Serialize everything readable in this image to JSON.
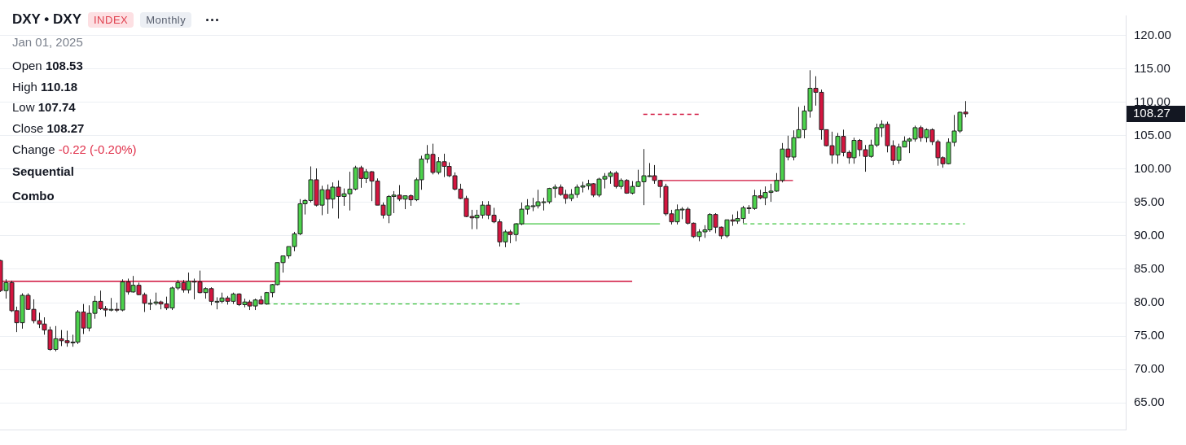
{
  "chart_data": {
    "type": "candlestick",
    "title": "DXY • DXY",
    "subtitle": "Jan 01, 2025",
    "categories": [
      null,
      null,
      null,
      null,
      null,
      null,
      null,
      null,
      null,
      null,
      null,
      null,
      null,
      null,
      null,
      null,
      null,
      null,
      null,
      null,
      null,
      null,
      null,
      null,
      null,
      null,
      null,
      null,
      null,
      null,
      null,
      null,
      null,
      null,
      null,
      null,
      null,
      null,
      null,
      null,
      null,
      null,
      null,
      null,
      null,
      null,
      null,
      null,
      null,
      null,
      null,
      null,
      null,
      null,
      null,
      null,
      null,
      null,
      null,
      null,
      null,
      null,
      null,
      null,
      null,
      null,
      null,
      null,
      null,
      null,
      null,
      null,
      null,
      null,
      null,
      null,
      null,
      null,
      null,
      null,
      null,
      null,
      null,
      null,
      null,
      null,
      null,
      null,
      null,
      null,
      null,
      null,
      null,
      null,
      null,
      null,
      null,
      null,
      null,
      null,
      null,
      null,
      null,
      null,
      null,
      null,
      null,
      null,
      null,
      null,
      null,
      null,
      null,
      null,
      null,
      null,
      null,
      null,
      null,
      null,
      null,
      null,
      null,
      null,
      null,
      null,
      null,
      null,
      null,
      null,
      null,
      null,
      null,
      null,
      null,
      null,
      null,
      null,
      null,
      null,
      null,
      null,
      null,
      null,
      null,
      null,
      null,
      null,
      null,
      null,
      null,
      null,
      null,
      null,
      null,
      null,
      null,
      null,
      null,
      null,
      null,
      null,
      null,
      null,
      null,
      null,
      null,
      null,
      null,
      null,
      null,
      null,
      null,
      null,
      null
    ],
    "ohlc": [
      [
        86.3,
        86.4,
        81.6,
        81.8
      ],
      [
        81.8,
        83.5,
        80.6,
        83.0
      ],
      [
        83.0,
        83.3,
        78.6,
        78.8
      ],
      [
        78.8,
        79.4,
        75.6,
        77.0
      ],
      [
        77.0,
        81.4,
        76.1,
        81.1
      ],
      [
        81.1,
        81.4,
        78.9,
        79.0
      ],
      [
        79.0,
        80.5,
        76.9,
        77.3
      ],
      [
        77.3,
        78.5,
        76.2,
        76.8
      ],
      [
        76.8,
        77.8,
        75.2,
        75.9
      ],
      [
        75.9,
        76.4,
        72.8,
        73.0
      ],
      [
        73.0,
        76.5,
        72.7,
        74.6
      ],
      [
        74.6,
        75.9,
        73.5,
        74.3
      ],
      [
        74.3,
        75.8,
        73.4,
        74.0
      ],
      [
        74.0,
        75.2,
        73.4,
        74.1
      ],
      [
        74.1,
        78.9,
        73.8,
        78.6
      ],
      [
        78.6,
        79.8,
        75.3,
        76.2
      ],
      [
        76.2,
        79.6,
        75.7,
        78.4
      ],
      [
        78.4,
        81.0,
        77.6,
        80.2
      ],
      [
        80.2,
        81.8,
        78.9,
        79.1
      ],
      [
        79.1,
        79.5,
        77.9,
        78.9
      ],
      [
        78.9,
        80.7,
        78.7,
        79.0
      ],
      [
        79.0,
        80.0,
        78.6,
        78.9
      ],
      [
        78.9,
        83.5,
        78.7,
        83.1
      ],
      [
        83.1,
        83.6,
        81.2,
        81.6
      ],
      [
        81.6,
        84.0,
        81.5,
        82.6
      ],
      [
        82.6,
        83.0,
        81.1,
        81.2
      ],
      [
        81.2,
        81.5,
        78.6,
        79.9
      ],
      [
        79.9,
        80.5,
        78.9,
        79.9
      ],
      [
        79.9,
        81.5,
        79.6,
        80.1
      ],
      [
        80.1,
        80.3,
        79.0,
        79.8
      ],
      [
        79.8,
        80.9,
        78.9,
        79.2
      ],
      [
        79.2,
        82.4,
        78.9,
        82.2
      ],
      [
        82.2,
        83.4,
        81.9,
        83.0
      ],
      [
        83.0,
        83.4,
        81.5,
        81.9
      ],
      [
        81.9,
        84.5,
        81.4,
        83.2
      ],
      [
        83.2,
        83.6,
        80.5,
        83.1
      ],
      [
        83.1,
        84.8,
        81.4,
        81.5
      ],
      [
        81.5,
        82.3,
        80.6,
        82.1
      ],
      [
        82.1,
        82.3,
        79.6,
        80.2
      ],
      [
        80.2,
        80.8,
        79.0,
        80.2
      ],
      [
        80.2,
        81.5,
        79.9,
        80.7
      ],
      [
        80.7,
        81.0,
        79.7,
        80.2
      ],
      [
        80.2,
        81.5,
        79.8,
        81.3
      ],
      [
        81.3,
        81.4,
        79.5,
        79.7
      ],
      [
        79.7,
        80.6,
        79.3,
        80.1
      ],
      [
        80.1,
        80.4,
        78.9,
        79.5
      ],
      [
        79.5,
        80.6,
        78.9,
        80.4
      ],
      [
        80.4,
        81.0,
        79.7,
        79.8
      ],
      [
        79.8,
        81.6,
        79.7,
        81.5
      ],
      [
        81.5,
        82.8,
        80.8,
        82.7
      ],
      [
        82.7,
        86.0,
        82.6,
        86.0
      ],
      [
        86.0,
        87.0,
        84.5,
        87.0
      ],
      [
        87.0,
        88.4,
        86.6,
        88.4
      ],
      [
        88.4,
        90.6,
        87.7,
        90.3
      ],
      [
        90.3,
        95.5,
        90.1,
        94.8
      ],
      [
        94.8,
        95.5,
        93.2,
        95.3
      ],
      [
        95.3,
        100.4,
        95.0,
        98.4
      ],
      [
        98.4,
        100.1,
        94.4,
        94.6
      ],
      [
        94.6,
        97.5,
        93.1,
        96.9
      ],
      [
        96.9,
        97.7,
        93.3,
        95.5
      ],
      [
        95.5,
        98.0,
        94.1,
        97.3
      ],
      [
        97.3,
        98.3,
        92.6,
        95.9
      ],
      [
        95.9,
        97.1,
        94.5,
        96.3
      ],
      [
        96.3,
        99.6,
        93.8,
        97.0
      ],
      [
        97.0,
        100.5,
        96.8,
        100.2
      ],
      [
        100.2,
        100.5,
        97.2,
        98.6
      ],
      [
        98.6,
        100.0,
        97.9,
        99.6
      ],
      [
        99.6,
        99.7,
        95.2,
        98.2
      ],
      [
        98.2,
        98.6,
        94.6,
        94.6
      ],
      [
        94.6,
        95.0,
        92.6,
        93.1
      ],
      [
        93.1,
        96.1,
        91.9,
        95.9
      ],
      [
        95.9,
        96.7,
        93.4,
        96.1
      ],
      [
        96.1,
        97.6,
        95.2,
        95.5
      ],
      [
        95.5,
        96.0,
        94.0,
        96.0
      ],
      [
        96.0,
        96.2,
        94.5,
        95.4
      ],
      [
        95.4,
        98.7,
        95.2,
        98.4
      ],
      [
        98.4,
        102.0,
        96.9,
        101.5
      ],
      [
        101.5,
        103.6,
        100.9,
        102.2
      ],
      [
        102.2,
        103.8,
        99.2,
        99.5
      ],
      [
        99.5,
        101.8,
        99.2,
        101.1
      ],
      [
        101.1,
        102.3,
        98.8,
        100.4
      ],
      [
        100.4,
        101.0,
        98.8,
        99.0
      ],
      [
        99.0,
        99.5,
        96.8,
        97.0
      ],
      [
        97.0,
        97.8,
        95.5,
        95.6
      ],
      [
        95.6,
        96.0,
        92.8,
        92.9
      ],
      [
        92.9,
        93.9,
        91.0,
        92.7
      ],
      [
        92.7,
        93.9,
        91.0,
        93.1
      ],
      [
        93.1,
        95.2,
        92.6,
        94.6
      ],
      [
        94.6,
        95.2,
        92.5,
        93.1
      ],
      [
        93.1,
        94.2,
        91.9,
        92.1
      ],
      [
        92.1,
        92.5,
        88.4,
        89.1
      ],
      [
        89.1,
        90.9,
        88.3,
        90.6
      ],
      [
        90.6,
        90.9,
        88.9,
        90.2
      ],
      [
        90.2,
        91.9,
        89.2,
        91.8
      ],
      [
        91.8,
        95.0,
        91.6,
        94.0
      ],
      [
        94.0,
        95.5,
        93.2,
        94.5
      ],
      [
        94.5,
        95.7,
        93.7,
        94.5
      ],
      [
        94.5,
        96.9,
        94.1,
        95.1
      ],
      [
        95.1,
        95.7,
        93.8,
        95.1
      ],
      [
        95.1,
        97.2,
        94.8,
        97.1
      ],
      [
        97.1,
        97.7,
        95.7,
        97.3
      ],
      [
        97.3,
        97.7,
        96.0,
        96.2
      ],
      [
        96.2,
        96.9,
        94.8,
        95.6
      ],
      [
        95.6,
        97.0,
        95.2,
        96.2
      ],
      [
        96.2,
        97.7,
        95.7,
        97.3
      ],
      [
        97.3,
        98.1,
        96.5,
        97.5
      ],
      [
        97.5,
        98.4,
        96.9,
        97.8
      ],
      [
        97.8,
        97.9,
        95.8,
        96.1
      ],
      [
        96.1,
        98.7,
        95.8,
        98.5
      ],
      [
        98.5,
        99.4,
        97.1,
        98.9
      ],
      [
        98.9,
        99.7,
        97.8,
        99.4
      ],
      [
        99.4,
        99.7,
        97.1,
        97.4
      ],
      [
        97.4,
        98.6,
        97.0,
        98.3
      ],
      [
        98.3,
        98.5,
        96.3,
        96.4
      ],
      [
        96.4,
        98.2,
        96.2,
        97.4
      ],
      [
        97.4,
        99.9,
        97.3,
        98.1
      ],
      [
        98.1,
        103.0,
        94.6,
        99.0
      ],
      [
        99.0,
        100.9,
        98.8,
        99.0
      ],
      [
        99.0,
        100.6,
        97.8,
        98.3
      ],
      [
        98.3,
        98.4,
        95.7,
        97.4
      ],
      [
        97.4,
        97.8,
        93.0,
        93.3
      ],
      [
        93.3,
        93.9,
        91.7,
        92.1
      ],
      [
        92.1,
        94.7,
        91.7,
        93.9
      ],
      [
        93.9,
        94.3,
        92.5,
        94.0
      ],
      [
        94.0,
        94.3,
        91.7,
        91.9
      ],
      [
        91.9,
        92.0,
        89.7,
        89.9
      ],
      [
        89.9,
        91.0,
        89.2,
        90.6
      ],
      [
        90.6,
        91.6,
        89.7,
        90.9
      ],
      [
        90.9,
        93.4,
        90.6,
        93.2
      ],
      [
        93.2,
        93.4,
        90.4,
        91.3
      ],
      [
        91.3,
        91.4,
        89.5,
        90.0
      ],
      [
        90.0,
        92.4,
        89.7,
        92.4
      ],
      [
        92.4,
        93.2,
        91.5,
        92.2
      ],
      [
        92.2,
        93.7,
        91.8,
        92.6
      ],
      [
        92.6,
        94.5,
        91.9,
        94.2
      ],
      [
        94.2,
        94.6,
        93.3,
        94.1
      ],
      [
        94.1,
        96.9,
        93.9,
        96.0
      ],
      [
        96.0,
        96.9,
        95.5,
        95.7
      ],
      [
        95.7,
        97.4,
        94.6,
        96.5
      ],
      [
        96.5,
        97.8,
        95.1,
        96.7
      ],
      [
        96.7,
        99.4,
        96.6,
        98.3
      ],
      [
        98.3,
        103.9,
        98.0,
        103.0
      ],
      [
        103.0,
        105.0,
        101.3,
        101.8
      ],
      [
        101.8,
        105.8,
        101.3,
        104.7
      ],
      [
        104.7,
        109.3,
        104.6,
        105.9
      ],
      [
        105.9,
        109.5,
        104.6,
        108.7
      ],
      [
        108.7,
        114.8,
        107.7,
        112.1
      ],
      [
        112.1,
        113.9,
        109.5,
        111.5
      ],
      [
        111.5,
        111.9,
        104.4,
        105.9
      ],
      [
        105.9,
        105.9,
        103.4,
        103.5
      ],
      [
        103.5,
        105.6,
        100.8,
        102.1
      ],
      [
        102.1,
        105.4,
        100.8,
        104.9
      ],
      [
        104.9,
        105.9,
        101.9,
        102.5
      ],
      [
        102.5,
        102.8,
        100.8,
        101.7
      ],
      [
        101.7,
        104.7,
        100.8,
        104.3
      ],
      [
        104.3,
        104.5,
        101.9,
        102.9
      ],
      [
        102.9,
        103.6,
        99.6,
        101.9
      ],
      [
        101.9,
        104.4,
        101.7,
        103.6
      ],
      [
        103.6,
        106.8,
        103.3,
        106.2
      ],
      [
        106.2,
        107.3,
        104.8,
        106.7
      ],
      [
        106.7,
        107.1,
        102.5,
        103.5
      ],
      [
        103.5,
        104.3,
        100.6,
        101.3
      ],
      [
        101.3,
        103.8,
        100.8,
        103.3
      ],
      [
        103.3,
        104.9,
        103.3,
        104.2
      ],
      [
        104.2,
        104.7,
        102.4,
        104.5
      ],
      [
        104.5,
        106.5,
        104.1,
        106.2
      ],
      [
        106.2,
        106.5,
        104.1,
        104.7
      ],
      [
        104.7,
        106.1,
        104.0,
        105.9
      ],
      [
        105.9,
        106.1,
        103.6,
        104.1
      ],
      [
        104.1,
        104.4,
        100.5,
        101.7
      ],
      [
        101.7,
        101.9,
        100.2,
        100.8
      ],
      [
        100.8,
        104.6,
        100.7,
        104.0
      ],
      [
        104.0,
        108.1,
        103.4,
        105.7
      ],
      [
        105.7,
        108.6,
        105.4,
        108.5
      ],
      [
        108.53,
        110.18,
        107.74,
        108.27
      ]
    ],
    "series": [
      {
        "type": "line",
        "color": "#d0103a",
        "line_style": "solid",
        "values": [
          83.2,
          83.2,
          83.2,
          83.2,
          83.2,
          83.2,
          83.2,
          83.2,
          83.2,
          83.2,
          83.2,
          83.2,
          83.2,
          83.2,
          83.2,
          83.2,
          83.2,
          83.2,
          83.2,
          83.2,
          83.2,
          83.2,
          83.2,
          83.2,
          83.2,
          83.2,
          83.2,
          83.2,
          83.2,
          83.2,
          83.2,
          83.2,
          83.2,
          83.2,
          83.2,
          83.2,
          83.2,
          83.2,
          83.2,
          83.2,
          83.2,
          83.2,
          83.2,
          83.2,
          83.2,
          83.2,
          83.2,
          83.2,
          83.2,
          83.2,
          83.2,
          83.2,
          83.2,
          83.2,
          83.2,
          83.2,
          83.2,
          83.2,
          83.2,
          83.2,
          83.2,
          83.2,
          83.2,
          83.2,
          83.2,
          83.2,
          83.2,
          83.2,
          83.2,
          83.2,
          83.2,
          83.2,
          83.2,
          83.2,
          83.2,
          83.2,
          83.2,
          83.2,
          83.2,
          83.2,
          83.2,
          83.2,
          83.2,
          83.2,
          83.2,
          83.2,
          83.2,
          83.2,
          83.2,
          83.2,
          83.2,
          83.2,
          83.2,
          83.2,
          83.2,
          83.2,
          83.2,
          83.2,
          83.2,
          83.2,
          83.2,
          83.2,
          83.2,
          83.2,
          83.2,
          83.2,
          83.2,
          83.2,
          83.2,
          83.2,
          83.2,
          83.2,
          83.2,
          83.2,
          83.2,
          null,
          null,
          null,
          null,
          null,
          null,
          null,
          null,
          null,
          null,
          null,
          null,
          null,
          null,
          null,
          null,
          null,
          null,
          null,
          null,
          null,
          null,
          null,
          null,
          null,
          null,
          null,
          null,
          null,
          null,
          null,
          null,
          null,
          null,
          null,
          null,
          null,
          null,
          null,
          null,
          null,
          null,
          null,
          null,
          null,
          null,
          null,
          null,
          null,
          null,
          null,
          null,
          null,
          null,
          null,
          null,
          null,
          null,
          null,
          null
        ]
      },
      {
        "type": "line",
        "color": "#3ec43e",
        "line_style": "dashed",
        "values": [
          null,
          null,
          null,
          null,
          null,
          null,
          null,
          null,
          null,
          null,
          null,
          null,
          null,
          null,
          null,
          null,
          null,
          null,
          null,
          null,
          null,
          null,
          null,
          null,
          null,
          null,
          null,
          null,
          null,
          null,
          null,
          null,
          null,
          null,
          null,
          null,
          null,
          null,
          null,
          null,
          null,
          null,
          null,
          null,
          null,
          null,
          null,
          null,
          79.8,
          79.8,
          79.8,
          79.8,
          79.8,
          79.8,
          79.8,
          79.8,
          79.8,
          79.8,
          79.8,
          79.8,
          79.8,
          79.8,
          79.8,
          79.8,
          79.8,
          79.8,
          79.8,
          79.8,
          79.8,
          79.8,
          79.8,
          79.8,
          79.8,
          79.8,
          79.8,
          79.8,
          79.8,
          79.8,
          79.8,
          79.8,
          79.8,
          79.8,
          79.8,
          79.8,
          79.8,
          79.8,
          79.8,
          79.8,
          79.8,
          79.8,
          79.8,
          79.8,
          79.8,
          79.8,
          79.8,
          null,
          null,
          null,
          null,
          null,
          null,
          null,
          null,
          null,
          null,
          null,
          null,
          null,
          null,
          null,
          null,
          null,
          null,
          null,
          null,
          null,
          null,
          null,
          null,
          null,
          null,
          null,
          null,
          null,
          null,
          null,
          null,
          null,
          null,
          null,
          null,
          null,
          null,
          null,
          null,
          null,
          null,
          null,
          null,
          null,
          null,
          null,
          null,
          null,
          null,
          null,
          null,
          null,
          null,
          null,
          null,
          null,
          null,
          null,
          null,
          null,
          null,
          null,
          null,
          null,
          null,
          null,
          null,
          null,
          null,
          null,
          null,
          null,
          null,
          null,
          null,
          null,
          null,
          null,
          null
        ]
      },
      {
        "type": "line",
        "color": "#3ec43e",
        "line_style": "solid",
        "values": [
          null,
          null,
          null,
          null,
          null,
          null,
          null,
          null,
          null,
          null,
          null,
          null,
          null,
          null,
          null,
          null,
          null,
          null,
          null,
          null,
          null,
          null,
          null,
          null,
          null,
          null,
          null,
          null,
          null,
          null,
          null,
          null,
          null,
          null,
          null,
          null,
          null,
          null,
          null,
          null,
          null,
          null,
          null,
          null,
          null,
          null,
          null,
          null,
          null,
          null,
          null,
          null,
          null,
          null,
          null,
          null,
          null,
          null,
          null,
          null,
          null,
          null,
          null,
          null,
          null,
          null,
          null,
          null,
          null,
          null,
          null,
          null,
          null,
          null,
          null,
          null,
          null,
          null,
          null,
          null,
          null,
          null,
          null,
          null,
          null,
          null,
          null,
          null,
          null,
          null,
          null,
          null,
          null,
          91.8,
          91.8,
          91.8,
          91.8,
          91.8,
          91.8,
          91.8,
          91.8,
          91.8,
          91.8,
          91.8,
          91.8,
          91.8,
          91.8,
          91.8,
          91.8,
          91.8,
          91.8,
          91.8,
          91.8,
          91.8,
          91.8,
          91.8,
          91.8,
          91.8,
          91.8,
          91.8,
          null,
          null,
          null,
          null,
          null,
          null,
          null,
          null,
          null,
          null,
          null,
          null,
          null,
          null,
          null,
          null,
          null,
          null,
          null,
          null,
          null,
          null,
          null,
          null,
          null,
          null,
          null,
          null,
          null,
          null,
          null,
          null,
          null,
          null,
          null,
          null,
          null,
          null,
          null,
          null,
          null,
          null,
          null,
          null,
          null,
          null,
          null,
          null,
          null,
          null,
          null,
          null,
          null,
          null,
          null
        ]
      },
      {
        "type": "line",
        "color": "#d0103a",
        "line_style": "dashed",
        "values": [
          null,
          null,
          null,
          null,
          null,
          null,
          null,
          null,
          null,
          null,
          null,
          null,
          null,
          null,
          null,
          null,
          null,
          null,
          null,
          null,
          null,
          null,
          null,
          null,
          null,
          null,
          null,
          null,
          null,
          null,
          null,
          null,
          null,
          null,
          null,
          null,
          null,
          null,
          null,
          null,
          null,
          null,
          null,
          null,
          null,
          null,
          null,
          null,
          null,
          null,
          null,
          null,
          null,
          null,
          null,
          null,
          null,
          null,
          null,
          null,
          null,
          null,
          null,
          null,
          null,
          null,
          null,
          null,
          null,
          null,
          null,
          null,
          null,
          null,
          null,
          null,
          null,
          null,
          null,
          null,
          null,
          null,
          null,
          null,
          null,
          null,
          null,
          null,
          null,
          null,
          null,
          null,
          null,
          null,
          null,
          null,
          null,
          null,
          null,
          null,
          null,
          null,
          null,
          null,
          null,
          null,
          null,
          null,
          null,
          null,
          null,
          null,
          null,
          null,
          null,
          null,
          108.2,
          108.2,
          108.2,
          108.2,
          108.2,
          108.2,
          108.2,
          108.2,
          108.2,
          108.2,
          108.2,
          null,
          null,
          null,
          null,
          null,
          null,
          null,
          null,
          null,
          null,
          null,
          null,
          null,
          null,
          null,
          null,
          null,
          null,
          null,
          null,
          null,
          null,
          null,
          null,
          null,
          null,
          null,
          null,
          null,
          null,
          null,
          null,
          null,
          null,
          null,
          null,
          null,
          null,
          null,
          null,
          null,
          null,
          null,
          null,
          null,
          null,
          null,
          null
        ]
      },
      {
        "type": "line",
        "color": "#d0103a",
        "line_style": "solid",
        "values": [
          null,
          null,
          null,
          null,
          null,
          null,
          null,
          null,
          null,
          null,
          null,
          null,
          null,
          null,
          null,
          null,
          null,
          null,
          null,
          null,
          null,
          null,
          null,
          null,
          null,
          null,
          null,
          null,
          null,
          null,
          null,
          null,
          null,
          null,
          null,
          null,
          null,
          null,
          null,
          null,
          null,
          null,
          null,
          null,
          null,
          null,
          null,
          null,
          null,
          null,
          null,
          null,
          null,
          null,
          null,
          null,
          null,
          null,
          null,
          null,
          null,
          null,
          null,
          null,
          null,
          null,
          null,
          null,
          null,
          null,
          null,
          null,
          null,
          null,
          null,
          null,
          null,
          null,
          null,
          null,
          null,
          null,
          null,
          null,
          null,
          null,
          null,
          null,
          null,
          null,
          null,
          null,
          null,
          null,
          null,
          null,
          null,
          null,
          null,
          null,
          null,
          null,
          null,
          null,
          null,
          null,
          null,
          null,
          null,
          null,
          null,
          null,
          null,
          null,
          null,
          null,
          null,
          null,
          null,
          98.3,
          98.3,
          98.3,
          98.3,
          98.3,
          98.3,
          98.3,
          98.3,
          98.3,
          98.3,
          98.3,
          98.3,
          98.3,
          98.3,
          98.3,
          98.3,
          98.3,
          98.3,
          98.3,
          98.3,
          98.3,
          98.3,
          98.3,
          98.3,
          98.3,
          null,
          null,
          null,
          null,
          null,
          null,
          null,
          null,
          null,
          null,
          null,
          null,
          null,
          null,
          null,
          null,
          null,
          null,
          null,
          null,
          null,
          null,
          null,
          null,
          null,
          null,
          null,
          null,
          null,
          null,
          null
        ]
      },
      {
        "type": "line",
        "color": "#3ec43e",
        "line_style": "dashed",
        "values": [
          null,
          null,
          null,
          null,
          null,
          null,
          null,
          null,
          null,
          null,
          null,
          null,
          null,
          null,
          null,
          null,
          null,
          null,
          null,
          null,
          null,
          null,
          null,
          null,
          null,
          null,
          null,
          null,
          null,
          null,
          null,
          null,
          null,
          null,
          null,
          null,
          null,
          null,
          null,
          null,
          null,
          null,
          null,
          null,
          null,
          null,
          null,
          null,
          null,
          null,
          null,
          null,
          null,
          null,
          null,
          null,
          null,
          null,
          null,
          null,
          null,
          null,
          null,
          null,
          null,
          null,
          null,
          null,
          null,
          null,
          null,
          null,
          null,
          null,
          null,
          null,
          null,
          null,
          null,
          null,
          null,
          null,
          null,
          null,
          null,
          null,
          null,
          null,
          null,
          null,
          null,
          null,
          null,
          null,
          null,
          null,
          null,
          null,
          null,
          null,
          null,
          null,
          null,
          null,
          null,
          null,
          null,
          null,
          null,
          null,
          null,
          null,
          null,
          null,
          null,
          null,
          null,
          null,
          null,
          null,
          null,
          null,
          null,
          null,
          null,
          null,
          null,
          null,
          null,
          null,
          null,
          null,
          null,
          null,
          91.8,
          91.8,
          91.8,
          91.8,
          91.8,
          91.8,
          91.8,
          91.8,
          91.8,
          91.8,
          91.8,
          91.8,
          91.8,
          91.8,
          91.8,
          91.8,
          91.8,
          91.8,
          91.8,
          91.8,
          91.8,
          91.8,
          91.8,
          91.8,
          91.8,
          91.8,
          91.8,
          91.8,
          91.8,
          91.8,
          91.8,
          91.8,
          91.8,
          91.8,
          91.8,
          91.8,
          91.8,
          91.8,
          91.8,
          91.8,
          91.8
        ]
      }
    ],
    "ylim": [
      61,
      123
    ],
    "yticks": [
      {
        "value": 65,
        "label": "65.00"
      },
      {
        "value": 70,
        "label": "70.00"
      },
      {
        "value": 75,
        "label": "75.00"
      },
      {
        "value": 80,
        "label": "80.00"
      },
      {
        "value": 85,
        "label": "85.00"
      },
      {
        "value": 90,
        "label": "90.00"
      },
      {
        "value": 95,
        "label": "95.00"
      },
      {
        "value": 100,
        "label": "100.00"
      },
      {
        "value": 105,
        "label": "105.00"
      },
      {
        "value": 110,
        "label": "110.00"
      },
      {
        "value": 115,
        "label": "115.00"
      },
      {
        "value": 120,
        "label": "120.00"
      }
    ],
    "tick_labels": "y",
    "grid": "y",
    "annotations": [
      "INDEX",
      "Monthly",
      "Open 108.53",
      "High 110.18",
      "Low 107.74",
      "Close 108.27",
      "Change -0.22 (-0.20%)",
      "Sequential",
      "Combo",
      "108.27"
    ]
  }
}
